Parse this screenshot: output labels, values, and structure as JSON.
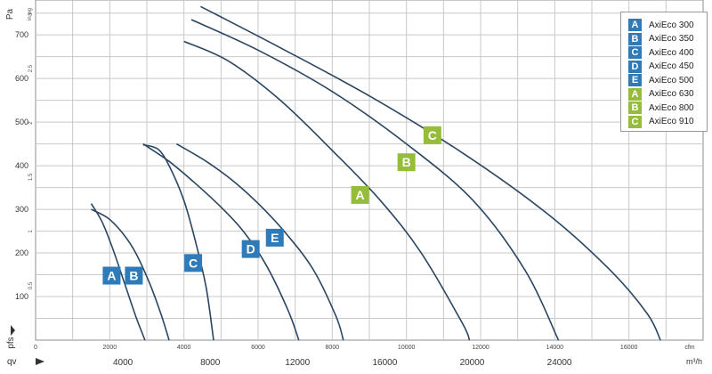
{
  "chart_data": {
    "type": "line",
    "title": "",
    "y_label": "Pa",
    "y_label_secondary": "in.wg",
    "pressure_axis_label": "pfs",
    "flow_axis_label": "qv",
    "x_unit_top": "cfm",
    "x_unit_bottom": "m³/h",
    "x_cfm_ticks": [
      "0",
      "2000",
      "4000",
      "6000",
      "8000",
      "10000",
      "12000",
      "14000",
      "16000"
    ],
    "x_cfm_range": [
      0,
      18000
    ],
    "x_m3h_ticks": [
      "4000",
      "8000",
      "12000",
      "16000",
      "20000",
      "24000"
    ],
    "y_pa_ticks": [
      "100",
      "200",
      "300",
      "400",
      "500",
      "600",
      "700"
    ],
    "y_pa_range": [
      0,
      780
    ],
    "y_inwg_ticks": [
      "0.5",
      "1",
      "1.5",
      "2",
      "2.5",
      "3"
    ],
    "grid": true,
    "legend_position": "top-right",
    "colors": {
      "blue": "#2f7ab8",
      "green": "#95bd3a",
      "curve": "#2b4660",
      "grid": "#c8c8c8"
    },
    "series": [
      {
        "name": "AxiEco 300",
        "letter": "A",
        "color": "#2f7ab8",
        "x": [
          1500,
          1800,
          2100,
          2400,
          2700,
          2950
        ],
        "y": [
          313,
          270,
          205,
          130,
          55,
          0
        ]
      },
      {
        "name": "AxiEco 350",
        "letter": "B",
        "color": "#2f7ab8",
        "x": [
          1500,
          1950,
          2350,
          2700,
          3100,
          3400,
          3600
        ],
        "y": [
          300,
          280,
          245,
          200,
          125,
          55,
          0
        ]
      },
      {
        "name": "AxiEco 400",
        "letter": "C",
        "color": "#2f7ab8",
        "x": [
          2900,
          3300,
          3600,
          4000,
          4300,
          4600,
          4800
        ],
        "y": [
          448,
          438,
          400,
          320,
          230,
          120,
          0
        ]
      },
      {
        "name": "AxiEco 450",
        "letter": "D",
        "color": "#2f7ab8",
        "x": [
          2900,
          3600,
          4300,
          5000,
          5600,
          6200,
          6800,
          7100
        ],
        "y": [
          450,
          410,
          360,
          305,
          250,
          175,
          70,
          0
        ]
      },
      {
        "name": "AxiEco 500",
        "letter": "E",
        "color": "#2f7ab8",
        "x": [
          3800,
          4600,
          5400,
          6100,
          6800,
          7500,
          8100,
          8300
        ],
        "y": [
          450,
          410,
          360,
          305,
          240,
          160,
          55,
          0
        ]
      },
      {
        "name": "AxiEco 630",
        "letter": "A",
        "color": "#95bd3a",
        "x": [
          4000,
          5200,
          6600,
          8000,
          9300,
          10400,
          11500,
          11700
        ],
        "y": [
          685,
          640,
          550,
          435,
          320,
          200,
          40,
          0
        ]
      },
      {
        "name": "AxiEco 800",
        "letter": "B",
        "color": "#95bd3a",
        "x": [
          4200,
          6000,
          8000,
          10000,
          11800,
          13200,
          14100
        ],
        "y": [
          735,
          665,
          570,
          450,
          320,
          160,
          0
        ]
      },
      {
        "name": "AxiEco 910",
        "letter": "C",
        "color": "#95bd3a",
        "x": [
          4450,
          6500,
          9000,
          11500,
          13800,
          15500,
          16500,
          16850
        ],
        "y": [
          765,
          675,
          560,
          430,
          290,
          160,
          60,
          0
        ]
      }
    ],
    "curve_labels": [
      {
        "letter": "A",
        "series": "AxiEco 300",
        "x": 2050,
        "y": 148
      },
      {
        "letter": "B",
        "series": "AxiEco 350",
        "x": 2650,
        "y": 148
      },
      {
        "letter": "C",
        "series": "AxiEco 400",
        "x": 4250,
        "y": 177
      },
      {
        "letter": "D",
        "series": "AxiEco 450",
        "x": 5800,
        "y": 209
      },
      {
        "letter": "E",
        "series": "AxiEco 500",
        "x": 6450,
        "y": 235
      },
      {
        "letter": "A",
        "series": "AxiEco 630",
        "x": 8750,
        "y": 333
      },
      {
        "letter": "B",
        "series": "AxiEco 800",
        "x": 10000,
        "y": 408
      },
      {
        "letter": "C",
        "series": "AxiEco 910",
        "x": 10700,
        "y": 470
      }
    ]
  }
}
